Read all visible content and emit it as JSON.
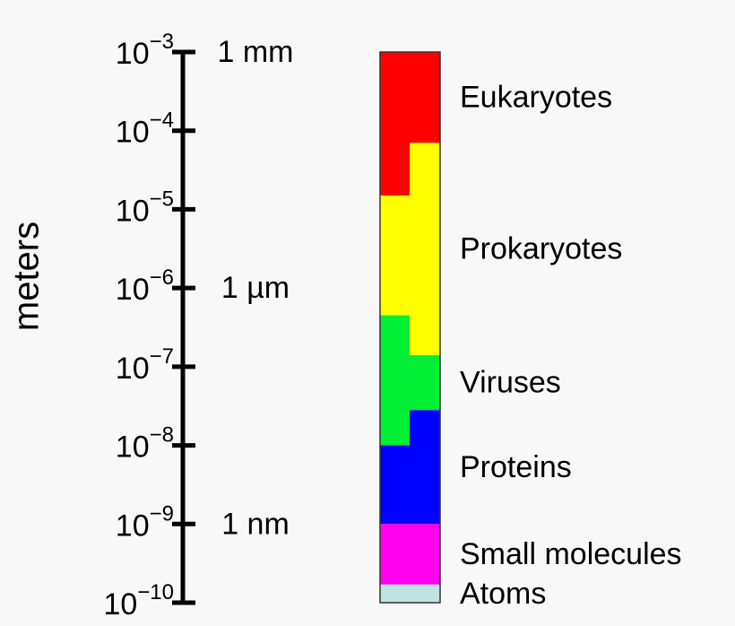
{
  "chart_data": {
    "type": "size-scale",
    "ylabel": "meters",
    "log_scale": true,
    "ylim": [
      1e-10,
      0.001
    ],
    "yticks": [
      {
        "value": 0.001,
        "label": "10",
        "exponent": "−3"
      },
      {
        "value": 0.0001,
        "label": "10",
        "exponent": "−4"
      },
      {
        "value": 1e-05,
        "label": "10",
        "exponent": "−5"
      },
      {
        "value": 1e-06,
        "label": "10",
        "exponent": "−6"
      },
      {
        "value": 1e-07,
        "label": "10",
        "exponent": "−7"
      },
      {
        "value": 1e-08,
        "label": "10",
        "exponent": "−8"
      },
      {
        "value": 1e-09,
        "label": "10",
        "exponent": "−9"
      },
      {
        "value": 1e-10,
        "label": "10",
        "exponent": "−10"
      }
    ],
    "annotations": [
      {
        "value": 0.001,
        "label": "1 mm"
      },
      {
        "value": 1e-06,
        "label": "1 µm"
      },
      {
        "value": 1e-09,
        "label": "1 nm"
      }
    ],
    "series": [
      {
        "name": "Eukaryotes",
        "color": "#ff0000",
        "left": [
          1.5e-05,
          0.001
        ],
        "right": [
          7e-05,
          0.001
        ]
      },
      {
        "name": "Prokaryotes",
        "color": "#ffff00",
        "left": [
          4.5e-07,
          1.5e-05
        ],
        "right": [
          1.4e-07,
          7e-05
        ]
      },
      {
        "name": "Viruses",
        "color": "#00ee33",
        "left": [
          1e-08,
          4.5e-07
        ],
        "right": [
          2.8e-08,
          1.4e-07
        ]
      },
      {
        "name": "Proteins",
        "color": "#0000ff",
        "left": [
          1e-09,
          1e-08
        ],
        "right": [
          1e-09,
          2.8e-08
        ]
      },
      {
        "name": "Small molecules",
        "color": "#ff00ee",
        "left": [
          1.7e-10,
          1e-09
        ],
        "right": [
          1.7e-10,
          1e-09
        ]
      },
      {
        "name": "Atoms",
        "color": "#bfe3e3",
        "left": [
          1e-10,
          1.7e-10
        ],
        "right": [
          1e-10,
          1.7e-10
        ]
      }
    ]
  }
}
